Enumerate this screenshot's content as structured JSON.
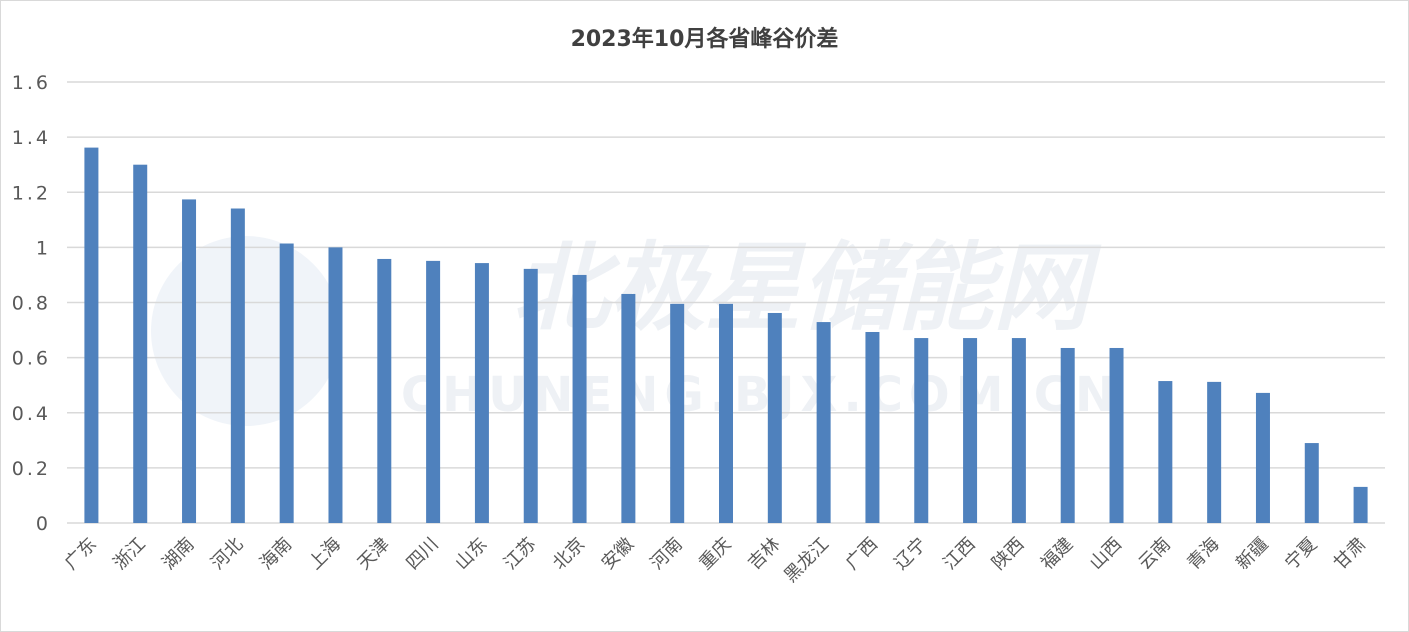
{
  "chart_data": {
    "type": "bar",
    "title": "2023年10月各省峰谷价差",
    "xlabel": "",
    "ylabel": "",
    "ylim": [
      0,
      1.6
    ],
    "yticks": [
      "0",
      "0.2",
      "0.4",
      "0.6",
      "0.8",
      "1",
      "1.2",
      "1.4",
      "1.6"
    ],
    "grid": true,
    "bar_color": "#4f81bd",
    "watermark": "北极星储能网 CHUNENG.BJX.COM.CN",
    "categories": [
      "广东",
      "浙江",
      "湖南",
      "河北",
      "海南",
      "上海",
      "天津",
      "四川",
      "山东",
      "江苏",
      "北京",
      "安徽",
      "河南",
      "重庆",
      "吉林",
      "黑龙江",
      "广西",
      "辽宁",
      "江西",
      "陕西",
      "福建",
      "山西",
      "云南",
      "青海",
      "新疆",
      "宁夏",
      "甘肃"
    ],
    "values": [
      1.362,
      1.3,
      1.174,
      1.141,
      1.014,
      1.0,
      0.958,
      0.951,
      0.943,
      0.922,
      0.9,
      0.831,
      0.795,
      0.795,
      0.762,
      0.729,
      0.693,
      0.671,
      0.671,
      0.671,
      0.635,
      0.635,
      0.515,
      0.512,
      0.472,
      0.29,
      0.131
    ]
  }
}
